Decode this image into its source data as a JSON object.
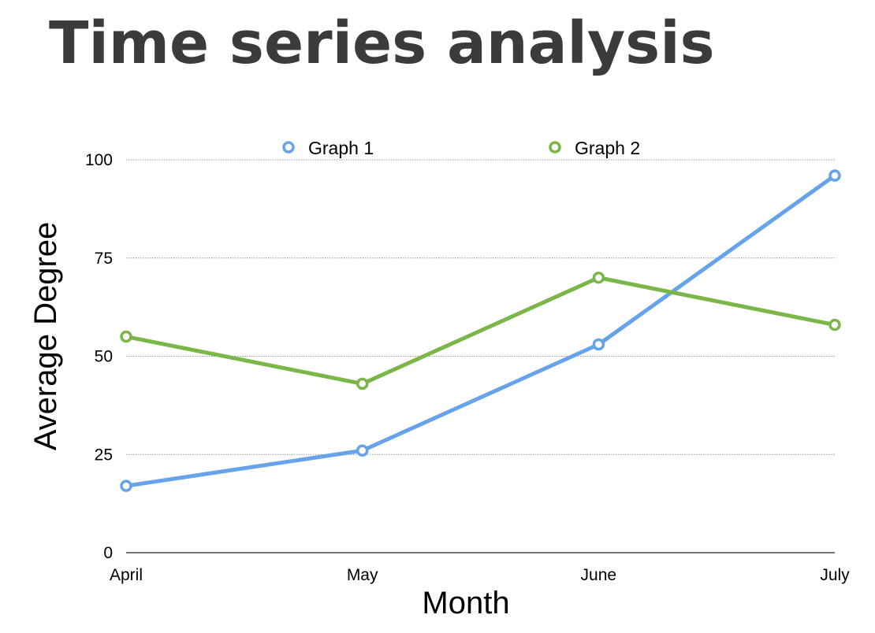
{
  "chart_data": {
    "type": "line",
    "title": "Time series analysis",
    "xlabel": "Month",
    "ylabel": "Average Degree",
    "categories": [
      "April",
      "May",
      "June",
      "July"
    ],
    "ylim": [
      0,
      100
    ],
    "yticks": [
      0,
      25,
      50,
      75,
      100
    ],
    "grid": true,
    "legend_position": "top-center",
    "series": [
      {
        "name": "Graph 1",
        "values": [
          17,
          26,
          53,
          96
        ],
        "color": "#66a3ea"
      },
      {
        "name": "Graph 2",
        "values": [
          55,
          43,
          70,
          58
        ],
        "color": "#7ab648"
      }
    ]
  }
}
